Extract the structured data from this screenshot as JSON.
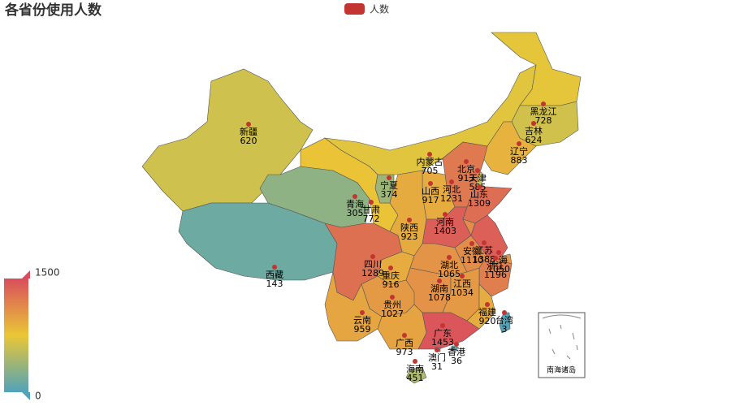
{
  "chart_data": {
    "type": "map",
    "title": "各省份使用人数",
    "series": [
      {
        "name": "人数",
        "color": "#c23531"
      }
    ],
    "categories": [
      "新疆",
      "西藏",
      "青海",
      "甘肃",
      "宁夏",
      "内蒙古",
      "黑龙江",
      "吉林",
      "辽宁",
      "北京",
      "天津",
      "河北",
      "山西",
      "山东",
      "河南",
      "陕西",
      "四川",
      "重庆",
      "湖北",
      "安徽",
      "江苏",
      "上海",
      "浙江",
      "湖南",
      "江西",
      "贵州",
      "云南",
      "广西",
      "广东",
      "福建",
      "台湾",
      "海南",
      "澳门",
      "香港"
    ],
    "values": [
      620,
      143,
      305,
      772,
      374,
      705,
      728,
      624,
      883,
      913,
      585,
      1231,
      917,
      1309,
      1403,
      923,
      1289,
      916,
      1065,
      1110,
      1388,
      1050,
      1196,
      1078,
      1034,
      1027,
      959,
      973,
      1453,
      920,
      3,
      451,
      31,
      36
    ],
    "visual_map": {
      "min": 0,
      "max": 1500,
      "colors": [
        "#50a3ba",
        "#eac736",
        "#d94e5d"
      ]
    },
    "inset_label": "南海诸岛"
  }
}
